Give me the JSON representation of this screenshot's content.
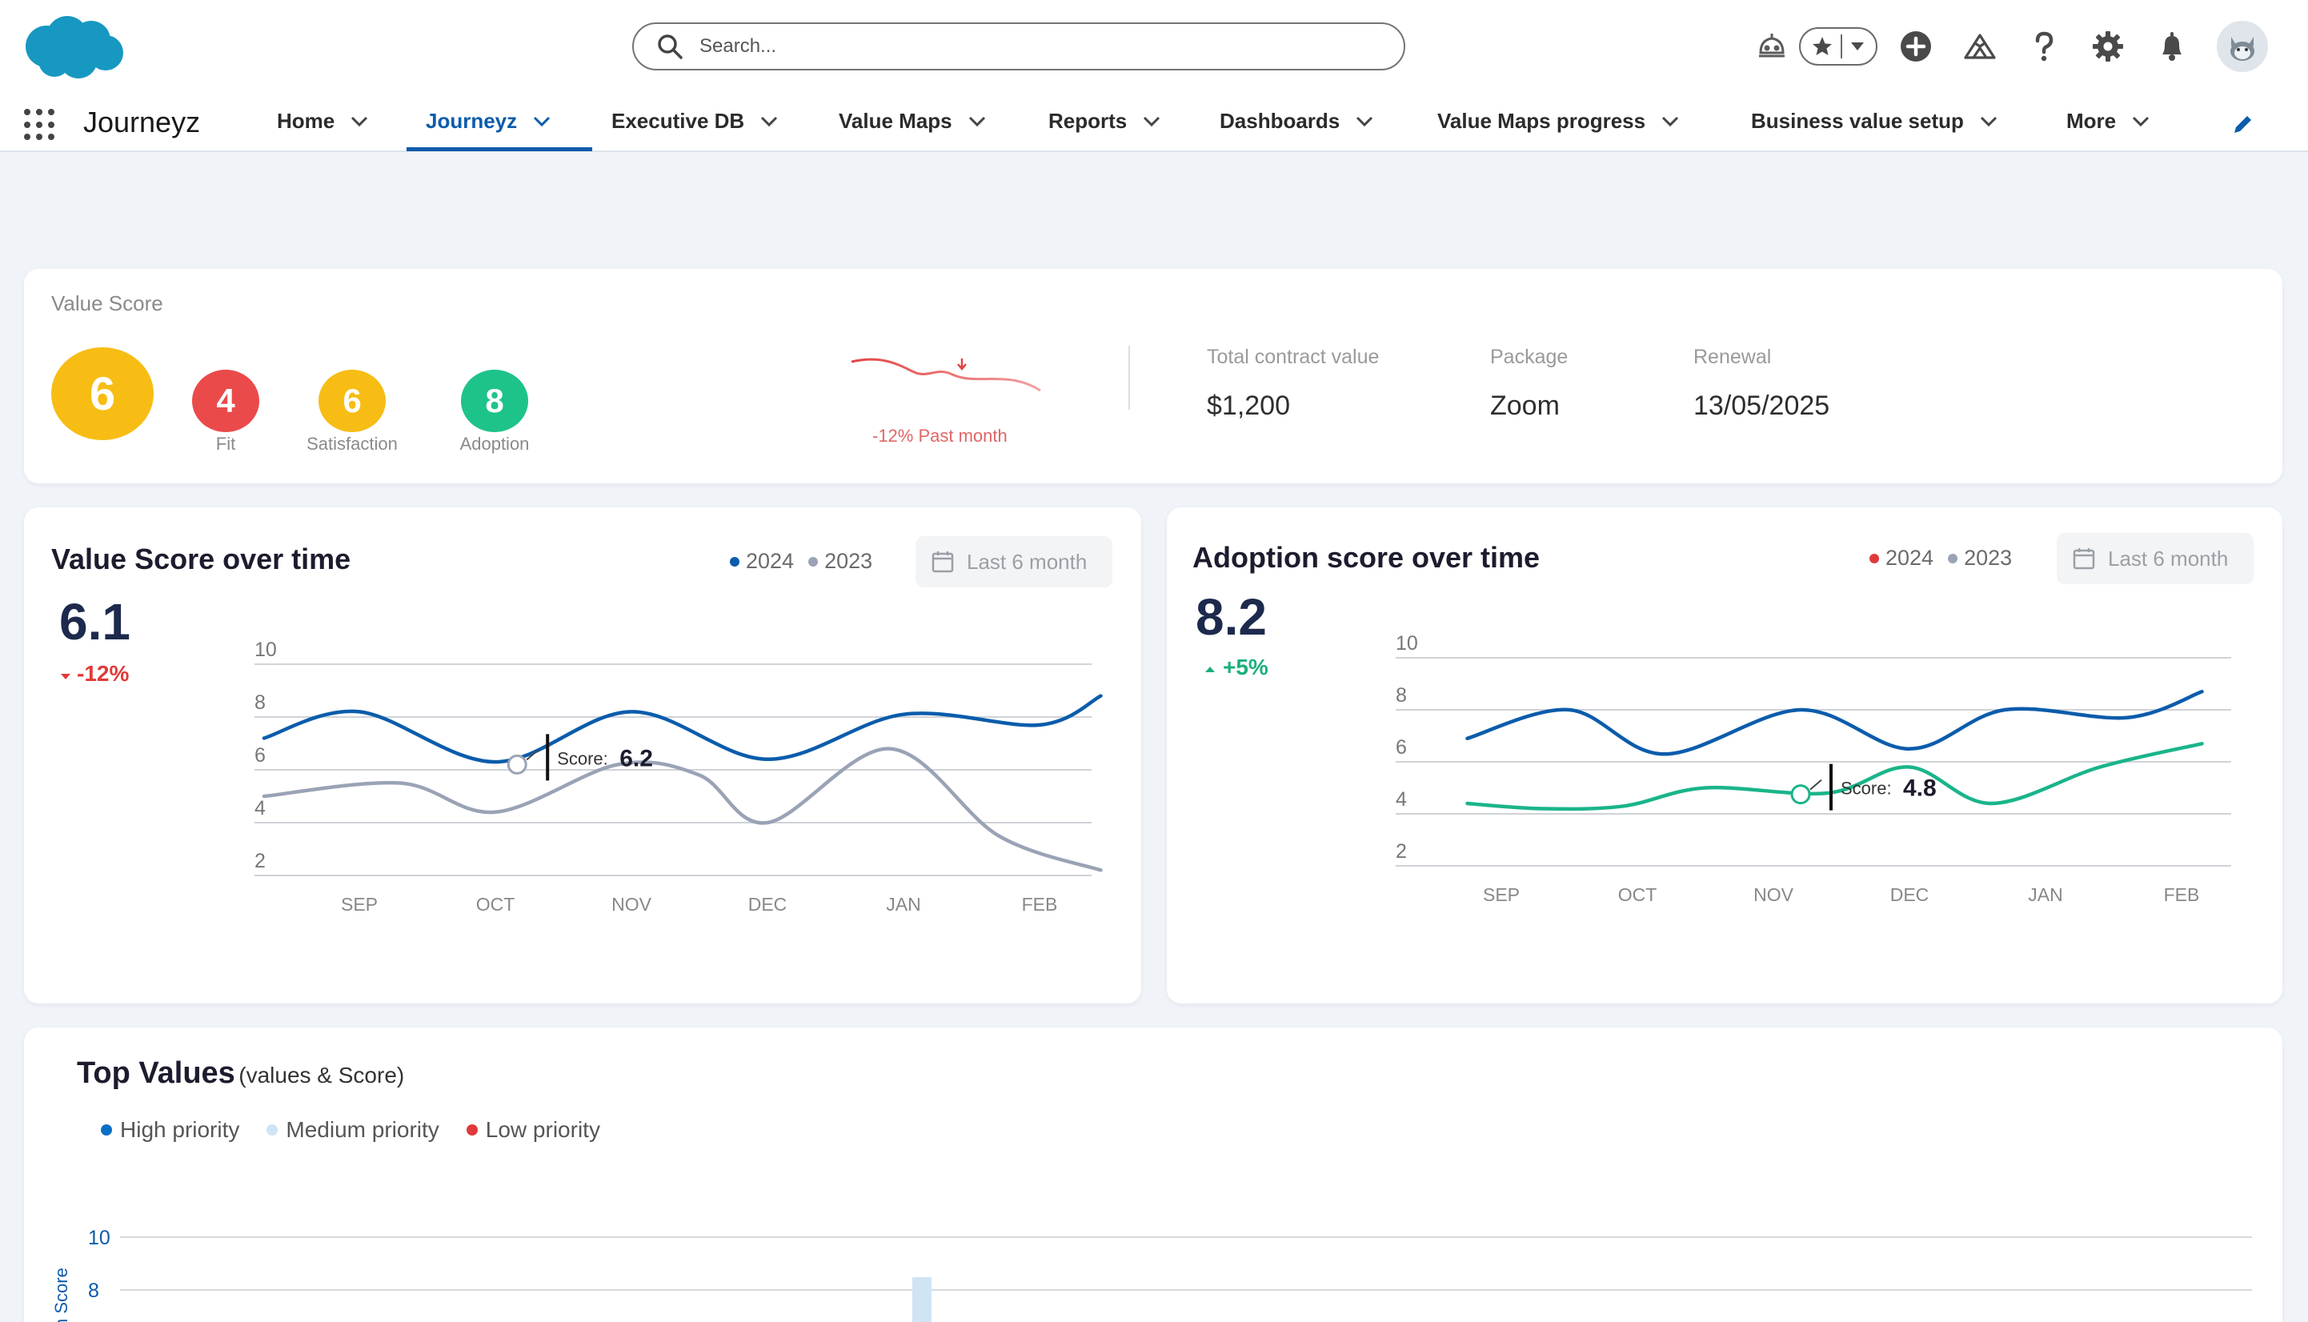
{
  "header": {
    "search_placeholder": "Search...",
    "icons": [
      "salesforce-cloud-logo",
      "astro-guide-icon",
      "favorites-star-icon",
      "favorites-dropdown-icon",
      "global-add-icon",
      "trailhead-icon",
      "help-icon",
      "setup-gear-icon",
      "notifications-bell-icon",
      "user-avatar"
    ]
  },
  "nav": {
    "app_name": "Journeyz",
    "tabs": [
      {
        "label": "Home"
      },
      {
        "label": "Journeyz",
        "active": true
      },
      {
        "label": "Executive DB"
      },
      {
        "label": "Value Maps"
      },
      {
        "label": "Reports"
      },
      {
        "label": "Dashboards"
      },
      {
        "label": "Value Maps progress"
      },
      {
        "label": "Business value setup"
      },
      {
        "label": "More"
      }
    ]
  },
  "value_score": {
    "title": "Value Score",
    "overall": "6",
    "scores": [
      {
        "value": "4",
        "label": "Fit",
        "color": "#ea4a4a"
      },
      {
        "value": "6",
        "label": "Satisfaction",
        "color": "#f7bd14"
      },
      {
        "value": "8",
        "label": "Adoption",
        "color": "#1ec38a"
      }
    ],
    "overall_color": "#f7bd14",
    "trend_label": "-12% Past month",
    "total_contract_label": "Total contract value",
    "total_contract_value": "$1,200",
    "package_label": "Package",
    "package_value": "Zoom",
    "renewal_label": "Renewal",
    "renewal_value": "13/05/2025"
  },
  "value_chart": {
    "title": "Value Score over time",
    "big_value": "6.1",
    "delta": "-12%",
    "delta_color": "#e03a3a",
    "range_label": "Last 6 month",
    "tooltip_label": "Score:",
    "tooltip_value": "6.2"
  },
  "adoption_chart": {
    "title": "Adoption score over time",
    "big_value": "8.2",
    "delta": "+5%",
    "delta_color": "#1ab07a",
    "range_label": "Last 6 month",
    "tooltip_label": "Score:",
    "tooltip_value": "4.8"
  },
  "top_values": {
    "title": "Top Values",
    "subtitle": "(values & Score)",
    "legend": [
      {
        "name": "High  priority",
        "color": "#0b6fc6"
      },
      {
        "name": "Medium priority",
        "color": "#cfe4f5"
      },
      {
        "name": "Low priority",
        "color": "#e03a3a"
      }
    ],
    "ylabel": "n Score"
  },
  "chart_data": [
    {
      "type": "line",
      "title": "Value Score over time",
      "categories": [
        "SEP",
        "OCT",
        "NOV",
        "DEC",
        "JAN",
        "FEB"
      ],
      "ylim": [
        2,
        10
      ],
      "yticks": [
        10,
        8,
        6,
        4,
        2
      ],
      "grid": true,
      "legend_position": "top-right",
      "series": [
        {
          "name": "2024",
          "color": "#0b5cab",
          "x": [
            -0.7,
            0,
            1,
            2,
            3,
            4,
            5,
            5.45
          ],
          "values": [
            7.2,
            8.2,
            6.3,
            8.2,
            6.4,
            8.1,
            7.7,
            8.8
          ]
        },
        {
          "name": "2023",
          "color": "#9aa3b5",
          "x": [
            -0.7,
            0.3,
            1,
            1.9,
            2.5,
            3,
            3.9,
            4.7,
            5.45
          ],
          "values": [
            5.0,
            5.5,
            4.4,
            6.2,
            5.8,
            4.0,
            6.8,
            3.5,
            2.2
          ]
        }
      ]
    },
    {
      "type": "line",
      "title": "Adoption score over time",
      "categories": [
        "SEP",
        "OCT",
        "NOV",
        "DEC",
        "JAN",
        "FEB"
      ],
      "ylim": [
        2,
        10
      ],
      "yticks": [
        10,
        8,
        6,
        4,
        2
      ],
      "grid": true,
      "legend_position": "top-right",
      "series": [
        {
          "name": "2024",
          "color": "#0b5cab",
          "x": [
            -0.25,
            0.5,
            1.2,
            2.2,
            3.0,
            3.7,
            4.6,
            5.15
          ],
          "values": [
            6.9,
            8.0,
            6.3,
            8.0,
            6.5,
            8.0,
            7.7,
            8.7
          ]
        },
        {
          "name": "2023",
          "color": "#1ab48a",
          "x": [
            -0.25,
            0.3,
            0.9,
            1.5,
            2.4,
            3.0,
            3.6,
            4.4,
            5.15
          ],
          "values": [
            4.4,
            4.2,
            4.3,
            5.0,
            4.8,
            5.8,
            4.4,
            5.8,
            6.7
          ]
        }
      ]
    },
    {
      "type": "bar",
      "title": "Top Values",
      "ylabel": "n Score",
      "yticks": [
        10,
        8
      ],
      "grid": true,
      "legend_position": "top-left",
      "series": [
        {
          "name": "High  priority",
          "values": []
        },
        {
          "name": "Medium priority",
          "values": []
        },
        {
          "name": "Low priority",
          "values": []
        }
      ]
    }
  ]
}
